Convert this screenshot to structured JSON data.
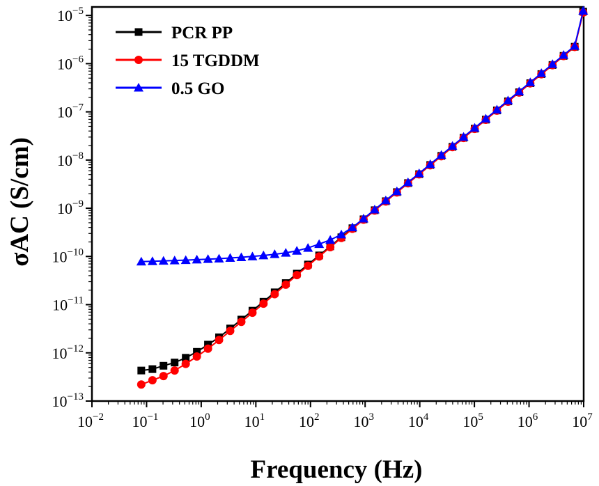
{
  "chart_data": {
    "type": "scatter",
    "xlabel": "Frequency (Hz)",
    "ylabel": "σAC (S/cm)",
    "x_scale": "log",
    "y_scale": "log",
    "xlim": [
      0.01,
      10000000
    ],
    "ylim": [
      1e-13,
      1.5e-05
    ],
    "x_ticks": [
      {
        "value": 0.01,
        "base": "10",
        "exp": "−2"
      },
      {
        "value": 0.1,
        "base": "10",
        "exp": "−1"
      },
      {
        "value": 1,
        "base": "10",
        "exp": "0"
      },
      {
        "value": 10,
        "base": "10",
        "exp": "1"
      },
      {
        "value": 100,
        "base": "10",
        "exp": "2"
      },
      {
        "value": 1000,
        "base": "10",
        "exp": "3"
      },
      {
        "value": 10000,
        "base": "10",
        "exp": "4"
      },
      {
        "value": 100000,
        "base": "10",
        "exp": "5"
      },
      {
        "value": 1000000,
        "base": "10",
        "exp": "6"
      },
      {
        "value": 10000000,
        "base": "10",
        "exp": "7"
      }
    ],
    "y_ticks": [
      {
        "value": 1e-13,
        "base": "10",
        "exp": "−13"
      },
      {
        "value": 1e-12,
        "base": "10",
        "exp": "−12"
      },
      {
        "value": 1e-11,
        "base": "10",
        "exp": "−11"
      },
      {
        "value": 1e-10,
        "base": "10",
        "exp": "−10"
      },
      {
        "value": 1e-09,
        "base": "10",
        "exp": "−9"
      },
      {
        "value": 1e-08,
        "base": "10",
        "exp": "−8"
      },
      {
        "value": 1e-07,
        "base": "10",
        "exp": "−7"
      },
      {
        "value": 1e-06,
        "base": "10",
        "exp": "−6"
      },
      {
        "value": 1e-05,
        "base": "10",
        "exp": "−5"
      }
    ],
    "grid": false,
    "legend_position": "top-left",
    "series": [
      {
        "name": "PCR PP",
        "color": "#000000",
        "marker": "square",
        "points": [
          [
            0.08,
            4.3e-13
          ],
          [
            0.128,
            4.6e-13
          ],
          [
            0.204,
            5.4e-13
          ],
          [
            0.326,
            6.3e-13
          ],
          [
            0.521,
            7.9e-13
          ],
          [
            0.832,
            1.05e-12
          ],
          [
            1.33,
            1.48e-12
          ],
          [
            2.12,
            2.1e-12
          ],
          [
            3.39,
            3.2e-12
          ],
          [
            5.42,
            4.9e-12
          ],
          [
            8.66,
            7.5e-12
          ],
          [
            13.8,
            1.15e-11
          ],
          [
            22.1,
            1.8e-11
          ],
          [
            35.3,
            2.8e-11
          ],
          [
            56.3,
            4.4e-11
          ],
          [
            90.0,
            6.8e-11
          ],
          [
            144,
            1.05e-10
          ],
          [
            230,
            1.62e-10
          ],
          [
            367,
            2.5e-10
          ],
          [
            586,
            3.85e-10
          ],
          [
            936,
            5.9e-10
          ],
          [
            1495,
            9.1e-10
          ],
          [
            2388,
            1.4e-09
          ],
          [
            3814,
            2.16e-09
          ],
          [
            6093,
            3.33e-09
          ],
          [
            9732,
            5.1e-09
          ],
          [
            15545,
            7.9e-09
          ],
          [
            24830,
            1.22e-08
          ],
          [
            39660,
            1.88e-08
          ],
          [
            63350,
            2.9e-08
          ],
          [
            101200,
            4.48e-08
          ],
          [
            161600,
            6.9e-08
          ],
          [
            258200,
            1.07e-07
          ],
          [
            412400,
            1.65e-07
          ],
          [
            658700,
            2.55e-07
          ],
          [
            1052000,
            3.93e-07
          ],
          [
            1681000,
            6.07e-07
          ],
          [
            2685000,
            9.37e-07
          ],
          [
            4288000,
            1.45e-06
          ],
          [
            6850000,
            2.24e-06
          ],
          [
            9800000,
            1.2e-05
          ]
        ]
      },
      {
        "name": "15 TGDDM",
        "color": "#ff0000",
        "marker": "circle",
        "points": [
          [
            0.08,
            2.2e-13
          ],
          [
            0.128,
            2.7e-13
          ],
          [
            0.204,
            3.3e-13
          ],
          [
            0.326,
            4.3e-13
          ],
          [
            0.521,
            5.9e-13
          ],
          [
            0.832,
            8.4e-13
          ],
          [
            1.33,
            1.22e-12
          ],
          [
            2.12,
            1.85e-12
          ],
          [
            3.39,
            2.85e-12
          ],
          [
            5.42,
            4.4e-12
          ],
          [
            8.66,
            6.8e-12
          ],
          [
            13.8,
            1.05e-11
          ],
          [
            22.1,
            1.65e-11
          ],
          [
            35.3,
            2.6e-11
          ],
          [
            56.3,
            4.1e-11
          ],
          [
            90.0,
            6.4e-11
          ],
          [
            144,
            1e-10
          ],
          [
            230,
            1.56e-10
          ],
          [
            367,
            2.42e-10
          ],
          [
            586,
            3.75e-10
          ],
          [
            936,
            5.8e-10
          ],
          [
            1495,
            8.95e-10
          ],
          [
            2388,
            1.38e-09
          ],
          [
            3814,
            2.13e-09
          ],
          [
            6093,
            3.29e-09
          ],
          [
            9732,
            5.05e-09
          ],
          [
            15545,
            7.8e-09
          ],
          [
            24830,
            1.2e-08
          ],
          [
            39660,
            1.86e-08
          ],
          [
            63350,
            2.87e-08
          ],
          [
            101200,
            4.43e-08
          ],
          [
            161600,
            6.84e-08
          ],
          [
            258200,
            1.06e-07
          ],
          [
            412400,
            1.63e-07
          ],
          [
            658700,
            2.52e-07
          ],
          [
            1052000,
            3.9e-07
          ],
          [
            1681000,
            6.02e-07
          ],
          [
            2685000,
            9.3e-07
          ],
          [
            4288000,
            1.44e-06
          ],
          [
            6850000,
            2.22e-06
          ],
          [
            9800000,
            1.15e-05
          ]
        ]
      },
      {
        "name": "0.5 GO",
        "color": "#0000ff",
        "marker": "triangle",
        "points": [
          [
            0.08,
            7.8e-11
          ],
          [
            0.128,
            7.95e-11
          ],
          [
            0.204,
            8.1e-11
          ],
          [
            0.326,
            8.25e-11
          ],
          [
            0.521,
            8.4e-11
          ],
          [
            0.832,
            8.6e-11
          ],
          [
            1.33,
            8.8e-11
          ],
          [
            2.12,
            9e-11
          ],
          [
            3.39,
            9.3e-11
          ],
          [
            5.42,
            9.6e-11
          ],
          [
            8.66,
            1e-10
          ],
          [
            13.8,
            1.05e-10
          ],
          [
            22.1,
            1.11e-10
          ],
          [
            35.3,
            1.19e-10
          ],
          [
            56.3,
            1.31e-10
          ],
          [
            90.0,
            1.5e-10
          ],
          [
            144,
            1.8e-10
          ],
          [
            230,
            2.2e-10
          ],
          [
            367,
            2.85e-10
          ],
          [
            586,
            4e-10
          ],
          [
            936,
            6.1e-10
          ],
          [
            1495,
            9.4e-10
          ],
          [
            2388,
            1.45e-09
          ],
          [
            3814,
            2.24e-09
          ],
          [
            6093,
            3.45e-09
          ],
          [
            9732,
            5.3e-09
          ],
          [
            15545,
            8.2e-09
          ],
          [
            24830,
            1.27e-08
          ],
          [
            39660,
            1.96e-08
          ],
          [
            63350,
            3.02e-08
          ],
          [
            101200,
            4.66e-08
          ],
          [
            161600,
            7.2e-08
          ],
          [
            258200,
            1.11e-07
          ],
          [
            412400,
            1.72e-07
          ],
          [
            658700,
            2.65e-07
          ],
          [
            1052000,
            4.1e-07
          ],
          [
            1681000,
            6.33e-07
          ],
          [
            2685000,
            9.78e-07
          ],
          [
            4288000,
            1.51e-06
          ],
          [
            6850000,
            2.33e-06
          ],
          [
            9800000,
            1.25e-05
          ]
        ]
      }
    ]
  }
}
